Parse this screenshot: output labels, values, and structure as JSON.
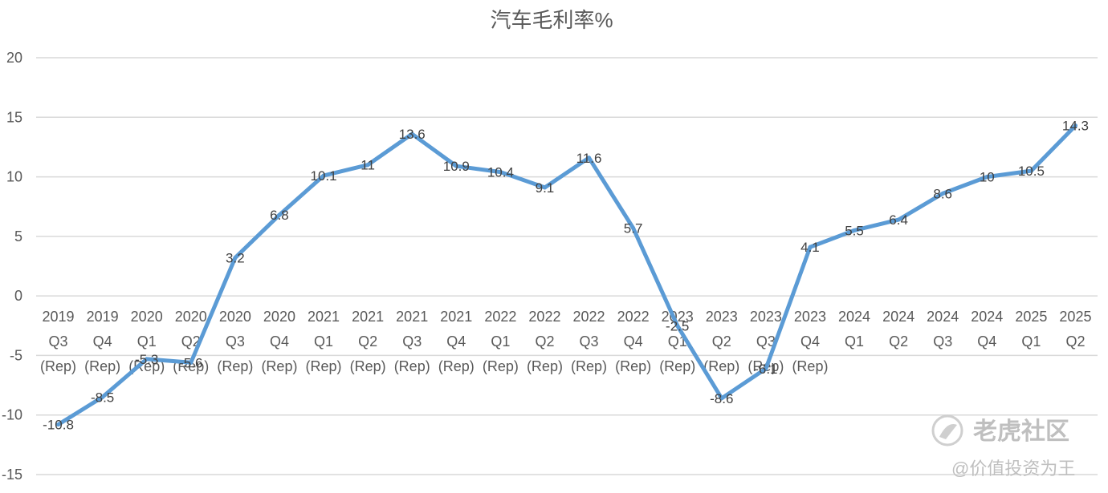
{
  "chart_data": {
    "type": "line",
    "title": "汽车毛利率%",
    "xlabel": "",
    "ylabel": "",
    "ylim": [
      -15,
      20
    ],
    "yticks": [
      20,
      15,
      10,
      5,
      0,
      -5,
      -10,
      -15
    ],
    "grid": true,
    "legend": "none",
    "color": "#5b9bd5",
    "categories": [
      [
        "2019",
        "Q3",
        "(Rep)"
      ],
      [
        "2019",
        "Q4",
        "(Rep)"
      ],
      [
        "2020",
        "Q1",
        "(Rep)"
      ],
      [
        "2020",
        "Q2",
        "(Rep)"
      ],
      [
        "2020",
        "Q3",
        "(Rep)"
      ],
      [
        "2020",
        "Q4",
        "(Rep)"
      ],
      [
        "2021",
        "Q1",
        "(Rep)"
      ],
      [
        "2021",
        "Q2",
        "(Rep)"
      ],
      [
        "2021",
        "Q3",
        "(Rep)"
      ],
      [
        "2021",
        "Q4",
        "(Rep)"
      ],
      [
        "2022",
        "Q1",
        "(Rep)"
      ],
      [
        "2022",
        "Q2",
        "(Rep)"
      ],
      [
        "2022",
        "Q3",
        "(Rep)"
      ],
      [
        "2022",
        "Q4",
        "(Rep)"
      ],
      [
        "2023",
        "Q1",
        "(Rep)"
      ],
      [
        "2023",
        "Q2",
        "(Rep)"
      ],
      [
        "2023",
        "Q3",
        "(Rep)"
      ],
      [
        "2023",
        "Q4",
        "(Rep)"
      ],
      [
        "2024",
        "Q1"
      ],
      [
        "2024",
        "Q2"
      ],
      [
        "2024",
        "Q3"
      ],
      [
        "2024",
        "Q4"
      ],
      [
        "2025",
        "Q1"
      ],
      [
        "2025",
        "Q2"
      ]
    ],
    "values": [
      -10.8,
      -8.5,
      -5.3,
      -5.6,
      3.2,
      6.8,
      10.1,
      11,
      13.6,
      10.9,
      10.4,
      9.1,
      11.6,
      5.7,
      -2.5,
      -8.6,
      -6.1,
      4.1,
      5.5,
      6.4,
      8.6,
      10,
      10.5,
      14.3
    ]
  },
  "watermark": {
    "brand": "老虎社区",
    "author": "@价值投资为王"
  }
}
